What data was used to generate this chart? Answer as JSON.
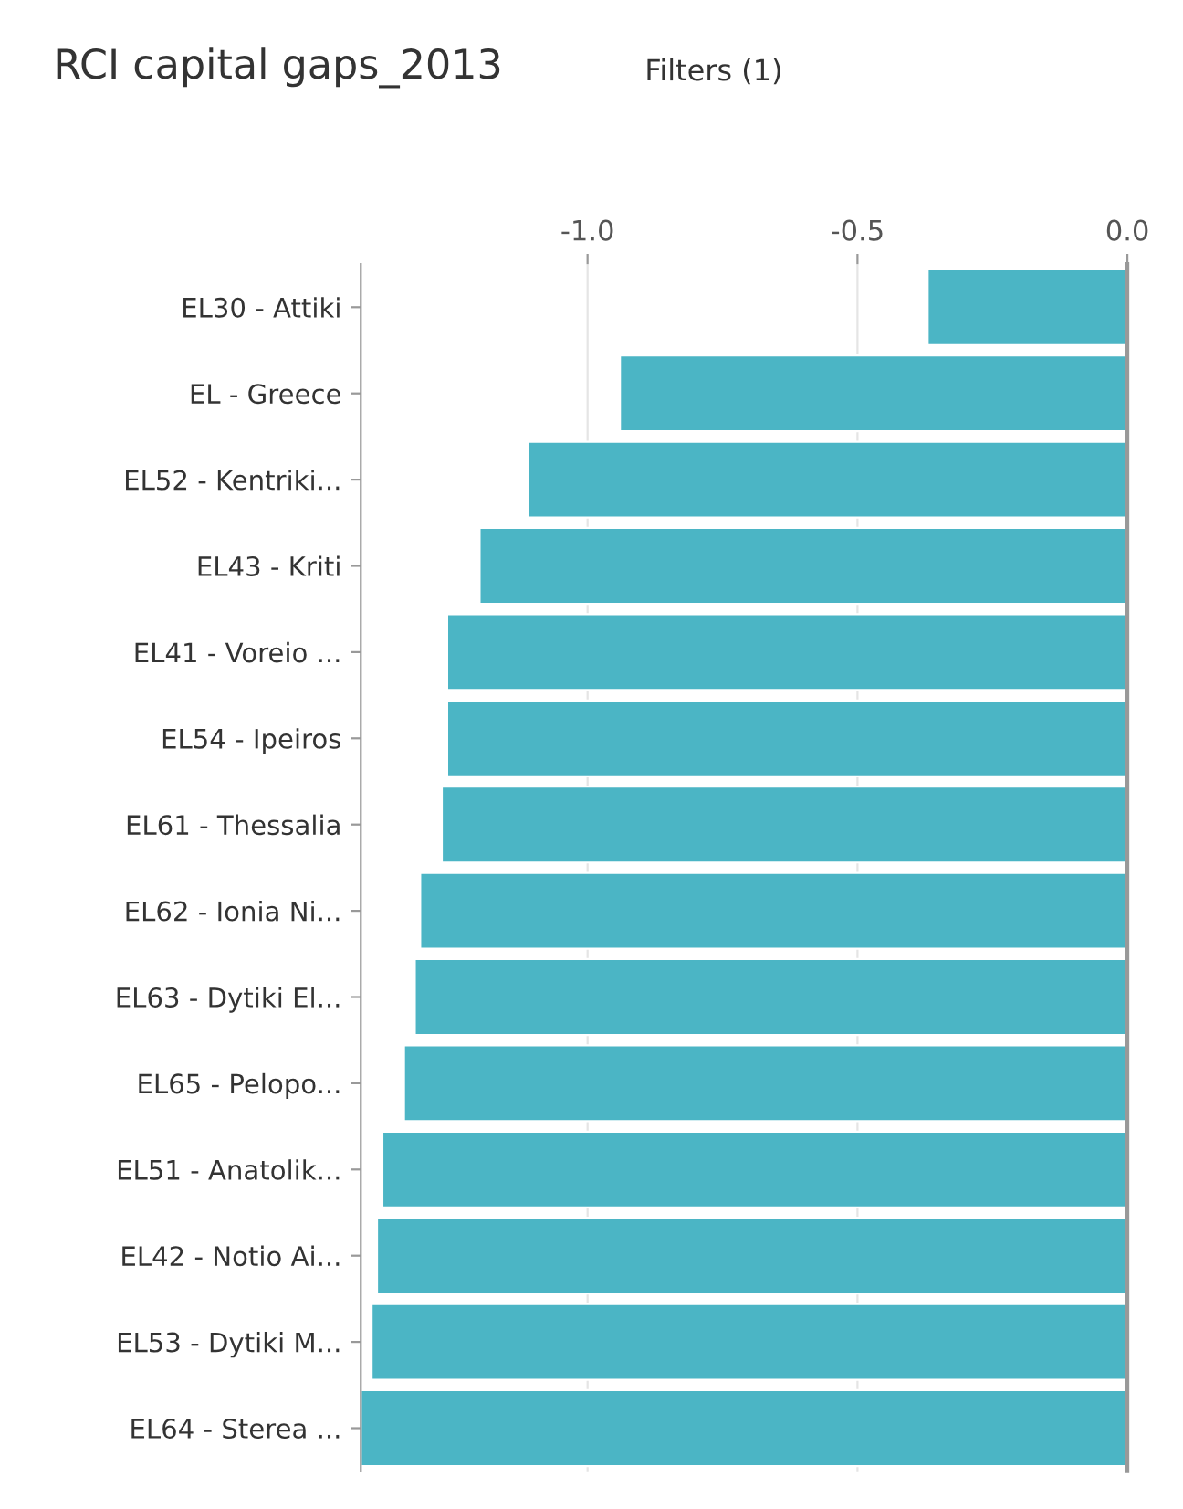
{
  "chart_data": {
    "type": "bar",
    "orientation": "horizontal",
    "title": "RCI capital gaps_2013",
    "annotations": [
      "Filters (1)"
    ],
    "categories": [
      "EL30 - Attiki",
      "EL - Greece",
      "EL52 - Kentriki...",
      "EL43 - Kriti",
      "EL41 - Voreio ...",
      "EL54 - Ipeiros",
      "EL61 - Thessalia",
      "EL62 - Ionia Ni...",
      "EL63 - Dytiki El...",
      "EL65 - Pelopo...",
      "EL51 - Anatolik...",
      "EL42 - Notio Ai...",
      "EL53 - Dytiki M...",
      "EL64 - Sterea ..."
    ],
    "values": [
      -0.37,
      -0.94,
      -1.11,
      -1.2,
      -1.26,
      -1.26,
      -1.27,
      -1.31,
      -1.32,
      -1.34,
      -1.38,
      -1.39,
      -1.4,
      -1.42
    ],
    "color": "#4bb5c5",
    "xlim": [
      -1.42,
      0
    ],
    "xticks": [
      {
        "value": -1,
        "label": "-1.0"
      },
      -0.5,
      {
        "value": 0,
        "label": "0.0"
      }
    ],
    "grid": "x",
    "legend": false
  }
}
